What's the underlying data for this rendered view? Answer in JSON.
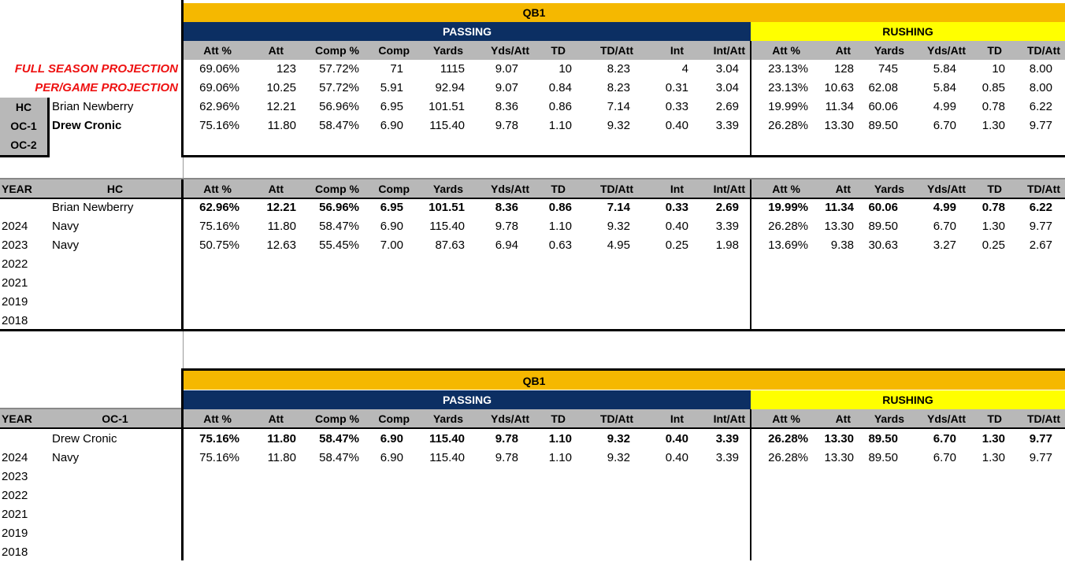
{
  "qb_label": "QB1",
  "passing_label": "PASSING",
  "rushing_label": "RUSHING",
  "col_headers": [
    "Att %",
    "Att",
    "Comp %",
    "Comp",
    "Yards",
    "Yds/Att",
    "TD",
    "TD/Att",
    "Int",
    "Int/Att",
    "Att %",
    "Att",
    "Yards",
    "Yds/Att",
    "TD",
    "TD/Att"
  ],
  "top": {
    "full_season_label": "FULL SEASON PROJECTION",
    "per_game_label": "PER/GAME PROJECTION",
    "full_season": [
      "69.06%",
      "123",
      "57.72%",
      "71",
      "1115",
      "9.07",
      "10",
      "8.23",
      "4",
      "3.04",
      "23.13%",
      "128",
      "745",
      "5.84",
      "10",
      "8.00"
    ],
    "per_game": [
      "69.06%",
      "10.25",
      "57.72%",
      "5.91",
      "92.94",
      "9.07",
      "0.84",
      "8.23",
      "0.31",
      "3.04",
      "23.13%",
      "10.63",
      "62.08",
      "5.84",
      "0.85",
      "8.00"
    ],
    "roles": [
      "HC",
      "OC-1",
      "OC-2"
    ],
    "coaches": [
      {
        "name": "Brian Newberry",
        "values": [
          "62.96%",
          "12.21",
          "56.96%",
          "6.95",
          "101.51",
          "8.36",
          "0.86",
          "7.14",
          "0.33",
          "2.69",
          "19.99%",
          "11.34",
          "60.06",
          "4.99",
          "0.78",
          "6.22"
        ]
      },
      {
        "name": "Drew Cronic",
        "values": [
          "75.16%",
          "11.80",
          "58.47%",
          "6.90",
          "115.40",
          "9.78",
          "1.10",
          "9.32",
          "0.40",
          "3.39",
          "26.28%",
          "13.30",
          "89.50",
          "6.70",
          "1.30",
          "9.77"
        ]
      }
    ]
  },
  "hc_section": {
    "year_label": "YEAR",
    "role_label": "HC",
    "name": "Brian Newberry",
    "summary": [
      "62.96%",
      "12.21",
      "56.96%",
      "6.95",
      "101.51",
      "8.36",
      "0.86",
      "7.14",
      "0.33",
      "2.69",
      "19.99%",
      "11.34",
      "60.06",
      "4.99",
      "0.78",
      "6.22"
    ],
    "rows": [
      {
        "year": "2024",
        "team": "Navy",
        "values": [
          "75.16%",
          "11.80",
          "58.47%",
          "6.90",
          "115.40",
          "9.78",
          "1.10",
          "9.32",
          "0.40",
          "3.39",
          "26.28%",
          "13.30",
          "89.50",
          "6.70",
          "1.30",
          "9.77"
        ]
      },
      {
        "year": "2023",
        "team": "Navy",
        "values": [
          "50.75%",
          "12.63",
          "55.45%",
          "7.00",
          "87.63",
          "6.94",
          "0.63",
          "4.95",
          "0.25",
          "1.98",
          "13.69%",
          "9.38",
          "30.63",
          "3.27",
          "0.25",
          "2.67"
        ]
      },
      {
        "year": "2022",
        "team": "",
        "values": []
      },
      {
        "year": "2021",
        "team": "",
        "values": []
      },
      {
        "year": "2019",
        "team": "",
        "values": []
      },
      {
        "year": "2018",
        "team": "",
        "values": []
      }
    ]
  },
  "oc_section": {
    "year_label": "YEAR",
    "role_label": "OC-1",
    "name": "Drew Cronic",
    "summary": [
      "75.16%",
      "11.80",
      "58.47%",
      "6.90",
      "115.40",
      "9.78",
      "1.10",
      "9.32",
      "0.40",
      "3.39",
      "26.28%",
      "13.30",
      "89.50",
      "6.70",
      "1.30",
      "9.77"
    ],
    "rows": [
      {
        "year": "2024",
        "team": "Navy",
        "values": [
          "75.16%",
          "11.80",
          "58.47%",
          "6.90",
          "115.40",
          "9.78",
          "1.10",
          "9.32",
          "0.40",
          "3.39",
          "26.28%",
          "13.30",
          "89.50",
          "6.70",
          "1.30",
          "9.77"
        ]
      },
      {
        "year": "2023",
        "team": "",
        "values": []
      },
      {
        "year": "2022",
        "team": "",
        "values": []
      },
      {
        "year": "2021",
        "team": "",
        "values": []
      },
      {
        "year": "2019",
        "team": "",
        "values": []
      },
      {
        "year": "2018",
        "team": "",
        "values": []
      }
    ]
  },
  "colors": {
    "gold": "#f5b800",
    "navy": "#0c2f63",
    "yellow": "#ffff00",
    "red": "#ee1111",
    "gray": "#b8b8b8"
  }
}
